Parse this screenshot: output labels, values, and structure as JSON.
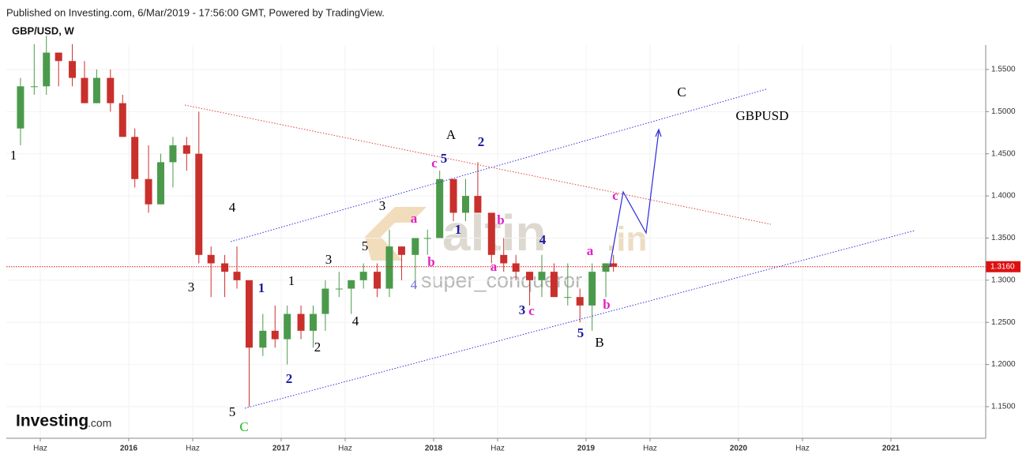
{
  "header": {
    "published": "Published on Investing.com, 6/Mar/2019 - 17:56:00 GMT, Powered by TradingView.",
    "symbol": "GBP/USD, W"
  },
  "logo": {
    "brand": "Investing",
    "suffix": ".com"
  },
  "watermark": {
    "brand": "altin",
    "suffix": ".in",
    "author": "super_conqueror"
  },
  "chart_data": {
    "type": "candlestick",
    "up_color": "#4b9a4b",
    "down_color": "#c9302c",
    "grid": true,
    "x": [
      2015.29,
      2015.38,
      2015.46,
      2015.54,
      2015.63,
      2015.71,
      2015.79,
      2015.88,
      2015.96,
      2016.04,
      2016.13,
      2016.21,
      2016.29,
      2016.38,
      2016.46,
      2016.54,
      2016.63,
      2016.71,
      2016.79,
      2016.88,
      2016.96,
      2017.04,
      2017.13,
      2017.21,
      2017.29,
      2017.38,
      2017.46,
      2017.54,
      2017.63,
      2017.71,
      2017.79,
      2017.88,
      2017.96,
      2018.04,
      2018.13,
      2018.21,
      2018.29,
      2018.38,
      2018.46,
      2018.54,
      2018.63,
      2018.71,
      2018.79,
      2018.88,
      2018.96,
      2019.04,
      2019.13,
      2019.18
    ],
    "open": [
      1.48,
      1.53,
      1.53,
      1.57,
      1.56,
      1.54,
      1.51,
      1.54,
      1.51,
      1.47,
      1.42,
      1.39,
      1.44,
      1.46,
      1.45,
      1.33,
      1.32,
      1.31,
      1.3,
      1.22,
      1.24,
      1.23,
      1.26,
      1.24,
      1.26,
      1.29,
      1.29,
      1.3,
      1.31,
      1.29,
      1.34,
      1.33,
      1.35,
      1.35,
      1.42,
      1.38,
      1.4,
      1.38,
      1.33,
      1.32,
      1.31,
      1.3,
      1.31,
      1.28,
      1.28,
      1.27,
      1.31,
      1.32
    ],
    "high": [
      1.54,
      1.58,
      1.59,
      1.57,
      1.58,
      1.56,
      1.55,
      1.55,
      1.52,
      1.48,
      1.46,
      1.45,
      1.47,
      1.47,
      1.5,
      1.34,
      1.33,
      1.34,
      1.3,
      1.26,
      1.27,
      1.27,
      1.27,
      1.27,
      1.3,
      1.31,
      1.3,
      1.32,
      1.32,
      1.36,
      1.34,
      1.35,
      1.36,
      1.43,
      1.42,
      1.42,
      1.44,
      1.38,
      1.35,
      1.33,
      1.31,
      1.33,
      1.32,
      1.32,
      1.29,
      1.32,
      1.32,
      1.33
    ],
    "low": [
      1.46,
      1.52,
      1.52,
      1.53,
      1.53,
      1.51,
      1.51,
      1.5,
      1.47,
      1.41,
      1.38,
      1.39,
      1.41,
      1.43,
      1.32,
      1.28,
      1.28,
      1.29,
      1.15,
      1.21,
      1.22,
      1.2,
      1.23,
      1.22,
      1.24,
      1.28,
      1.26,
      1.29,
      1.28,
      1.28,
      1.3,
      1.3,
      1.33,
      1.35,
      1.37,
      1.37,
      1.38,
      1.32,
      1.31,
      1.3,
      1.27,
      1.28,
      1.28,
      1.27,
      1.25,
      1.24,
      1.28,
      1.31
    ],
    "close": [
      1.53,
      1.53,
      1.57,
      1.56,
      1.54,
      1.51,
      1.54,
      1.51,
      1.47,
      1.42,
      1.39,
      1.44,
      1.46,
      1.45,
      1.33,
      1.32,
      1.31,
      1.3,
      1.22,
      1.24,
      1.23,
      1.26,
      1.24,
      1.26,
      1.29,
      1.29,
      1.3,
      1.31,
      1.29,
      1.34,
      1.33,
      1.35,
      1.35,
      1.42,
      1.38,
      1.4,
      1.38,
      1.33,
      1.32,
      1.31,
      1.3,
      1.31,
      1.28,
      1.28,
      1.27,
      1.31,
      1.32,
      1.316
    ],
    "last_price": {
      "value": 1.316,
      "label": "1.3160"
    },
    "xlim": [
      2015.197,
      2021.622
    ],
    "xticks": [
      {
        "value": 2015.42,
        "label": "Haz"
      },
      2016,
      {
        "value": 2016.42,
        "label": "Haz"
      },
      2017,
      {
        "value": 2017.42,
        "label": "Haz"
      },
      2018,
      {
        "value": 2018.42,
        "label": "Haz"
      },
      2019,
      {
        "value": 2019.42,
        "label": "Haz"
      },
      2020,
      {
        "value": 2020.42,
        "label": "Haz"
      },
      2021
    ],
    "ylim": [
      1.1125,
      1.579
    ],
    "yticks": [
      {
        "value": 1.15,
        "label": "1.1500"
      },
      {
        "value": 1.2,
        "label": "1.2000"
      },
      {
        "value": 1.25,
        "label": "1.2500"
      },
      {
        "value": 1.3,
        "label": "1.3000"
      },
      {
        "value": 1.35,
        "label": "1.3500"
      },
      {
        "value": 1.4,
        "label": "1.4000"
      },
      {
        "value": 1.45,
        "label": "1.4500"
      },
      {
        "value": 1.5,
        "label": "1.5000"
      },
      {
        "value": 1.55,
        "label": "1.5500"
      }
    ],
    "annotations": [
      {
        "text": "1",
        "color": "#000000"
      },
      {
        "text": "4",
        "color": "#000000"
      },
      {
        "text": "3",
        "color": "#000000"
      },
      {
        "text": "5",
        "color": "#000000"
      },
      {
        "text": "C",
        "color": "#22bb22"
      },
      {
        "text": "1",
        "color": "#1a1aa0"
      },
      {
        "text": "1",
        "color": "#000000"
      },
      {
        "text": "2",
        "color": "#1a1aa0"
      },
      {
        "text": "2",
        "color": "#000000"
      },
      {
        "text": "3",
        "color": "#000000"
      },
      {
        "text": "4",
        "color": "#000000"
      },
      {
        "text": "5",
        "color": "#000000"
      },
      {
        "text": "3",
        "color": "#000000"
      },
      {
        "text": "a",
        "color": "#e020c0"
      },
      {
        "text": "b",
        "color": "#e020c0"
      },
      {
        "text": "4",
        "color": "#6a6ac8"
      },
      {
        "text": "c",
        "color": "#e020c0"
      },
      {
        "text": "5",
        "color": "#1a1aa0"
      },
      {
        "text": "A",
        "color": "#000000"
      },
      {
        "text": "2",
        "color": "#1a1aa0"
      },
      {
        "text": "1",
        "color": "#1a1aa0"
      },
      {
        "text": "b",
        "color": "#e020c0"
      },
      {
        "text": "a",
        "color": "#e020c0"
      },
      {
        "text": "3",
        "color": "#1a1aa0"
      },
      {
        "text": "c",
        "color": "#e020c0"
      },
      {
        "text": "4",
        "color": "#1a1aa0"
      },
      {
        "text": "a",
        "color": "#e020c0"
      },
      {
        "text": "b",
        "color": "#e020c0"
      },
      {
        "text": "5",
        "color": "#1a1aa0"
      },
      {
        "text": "B",
        "color": "#000000"
      },
      {
        "text": "c",
        "color": "#e020c0"
      },
      {
        "text": "C",
        "color": "#000000"
      },
      {
        "text": "GBPUSD",
        "color": "#000000"
      }
    ]
  }
}
